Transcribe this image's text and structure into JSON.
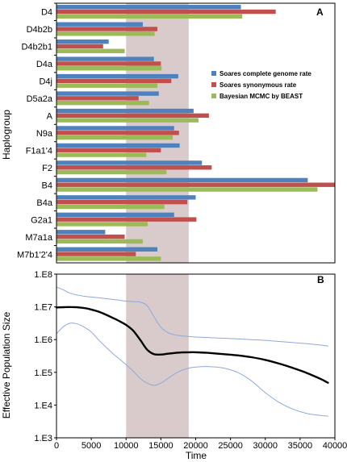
{
  "colors": {
    "complete": "#4F81BD",
    "synonymous": "#C0504D",
    "bayesian": "#9BBB59",
    "shade": "#D9CBCB",
    "median_line": "#000000",
    "hpd_line": "#8EA9DB"
  },
  "chart_data": [
    {
      "type": "bar",
      "orientation": "horizontal",
      "panel_label": "A",
      "ylabel": "Haplogroup",
      "categories": [
        "D4",
        "D4b2b",
        "D4b2b1",
        "D4a",
        "D4j",
        "D5a2a",
        "A",
        "N9a",
        "F1a1'4",
        "F2",
        "B4",
        "B4a",
        "G2a1",
        "M7a1a",
        "M7b1'2'4"
      ],
      "xlim": [
        0,
        40000
      ],
      "shaded_interval": [
        10000,
        19000
      ],
      "legend_position": "right",
      "series": [
        {
          "name": "Soares complete genome rate",
          "color_key": "complete",
          "values": [
            26500,
            12400,
            7500,
            14000,
            17500,
            14700,
            19700,
            16900,
            17700,
            20900,
            36100,
            20000,
            16900,
            7000,
            14500
          ]
        },
        {
          "name": "Soares synonymous rate",
          "color_key": "synonymous",
          "values": [
            31500,
            14500,
            6700,
            15000,
            16500,
            11800,
            21900,
            17600,
            15000,
            22300,
            40200,
            18800,
            20100,
            9800,
            11400
          ]
        },
        {
          "name": "Bayesian MCMC by BEAST",
          "color_key": "bayesian",
          "values": [
            26700,
            14100,
            9800,
            15100,
            14500,
            13300,
            20400,
            16700,
            12900,
            15800,
            37500,
            15500,
            13100,
            12400,
            15000
          ]
        }
      ]
    },
    {
      "type": "line",
      "panel_label": "B",
      "xlabel": "Time",
      "ylabel": "Effective Population Size",
      "xlim": [
        0,
        40000
      ],
      "xticks": [
        "0",
        "5000",
        "10000",
        "15000",
        "20000",
        "25000",
        "30000",
        "35000",
        "40000"
      ],
      "ylog": true,
      "ylim": [
        1000,
        100000000
      ],
      "yticks": [
        "1.E3",
        "1.E4",
        "1.E5",
        "1.E6",
        "1.E7",
        "1.E8"
      ],
      "shaded_interval": [
        10000,
        19000
      ],
      "series": [
        {
          "role": "median",
          "color_key": "median_line",
          "x": [
            0,
            1000,
            2000,
            3000,
            4000,
            5000,
            6000,
            7000,
            8000,
            9000,
            10000,
            11000,
            12000,
            13000,
            14000,
            15000,
            16000,
            17000,
            18000,
            19000,
            20000,
            22000,
            24000,
            26000,
            28000,
            30000,
            32000,
            34000,
            36000,
            38000,
            39000
          ],
          "y": [
            9600000,
            9800000,
            9900000,
            9700000,
            9200000,
            8300000,
            7200000,
            5900000,
            4700000,
            3700000,
            2800000,
            1900000,
            1000000,
            500000,
            360000,
            350000,
            370000,
            390000,
            405000,
            410000,
            410000,
            390000,
            360000,
            330000,
            290000,
            240000,
            185000,
            135000,
            95000,
            62000,
            48000
          ]
        },
        {
          "role": "upper_95_hpd",
          "color_key": "hpd_line",
          "x": [
            0,
            1000,
            2000,
            3000,
            4000,
            5000,
            6000,
            7000,
            8000,
            9000,
            10000,
            11000,
            12000,
            13000,
            14000,
            15000,
            16000,
            17000,
            18000,
            19000,
            20000,
            22000,
            24000,
            26000,
            28000,
            30000,
            32000,
            34000,
            36000,
            38000,
            39000
          ],
          "y": [
            40000000,
            33000000,
            26000000,
            23000000,
            21000000,
            20000000,
            19000000,
            18000000,
            17000000,
            16000000,
            15000000,
            14500000,
            14000000,
            11000000,
            5000000,
            2400000,
            1650000,
            1400000,
            1300000,
            1250000,
            1200000,
            1150000,
            1100000,
            1050000,
            1000000,
            950000,
            880000,
            810000,
            750000,
            680000,
            640000
          ]
        },
        {
          "role": "lower_95_hpd",
          "color_key": "hpd_line",
          "x": [
            0,
            1000,
            2000,
            3000,
            4000,
            5000,
            6000,
            7000,
            8000,
            9000,
            10000,
            11000,
            12000,
            13000,
            14000,
            15000,
            16000,
            17000,
            18000,
            19000,
            20000,
            22000,
            24000,
            26000,
            28000,
            30000,
            32000,
            34000,
            36000,
            38000,
            39000
          ],
          "y": [
            1500000,
            2500000,
            3200000,
            3000000,
            2400000,
            1700000,
            1000000,
            620000,
            390000,
            260000,
            170000,
            110000,
            66000,
            47000,
            40000,
            47000,
            65000,
            90000,
            115000,
            135000,
            145000,
            150000,
            135000,
            100000,
            55000,
            24000,
            12000,
            7500,
            5500,
            4800,
            4600
          ]
        }
      ]
    }
  ]
}
